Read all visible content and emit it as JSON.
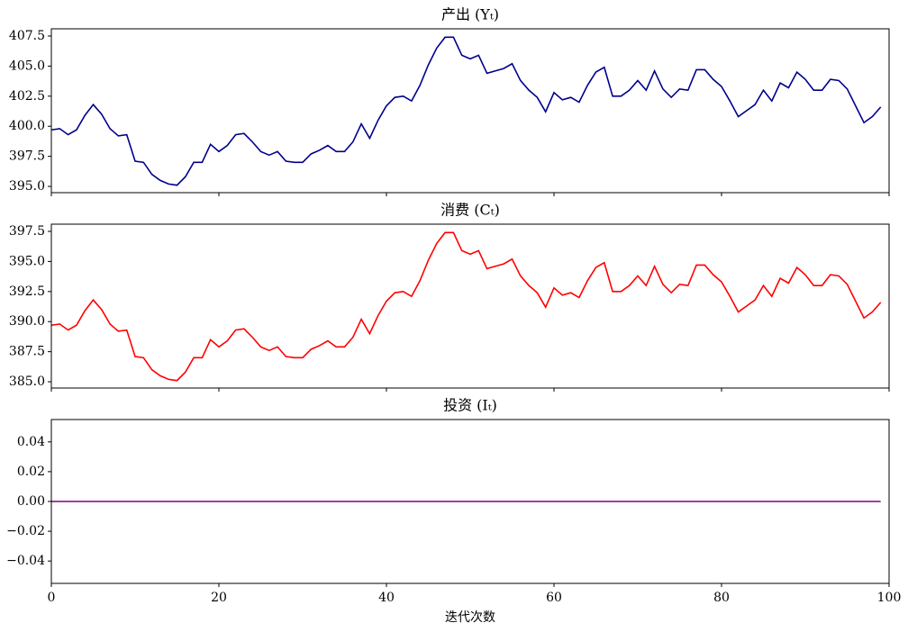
{
  "chart_data": [
    {
      "type": "line",
      "title": "产出 (Yₜ)",
      "color": "#00008b",
      "show_xticklabels": false,
      "x": [
        0,
        1,
        2,
        3,
        4,
        5,
        6,
        7,
        8,
        9,
        10,
        11,
        12,
        13,
        14,
        15,
        16,
        17,
        18,
        19,
        20,
        21,
        22,
        23,
        24,
        25,
        26,
        27,
        28,
        29,
        30,
        31,
        32,
        33,
        34,
        35,
        36,
        37,
        38,
        39,
        40,
        41,
        42,
        43,
        44,
        45,
        46,
        47,
        48,
        49,
        50,
        51,
        52,
        53,
        54,
        55,
        56,
        57,
        58,
        59,
        60,
        61,
        62,
        63,
        64,
        65,
        66,
        67,
        68,
        69,
        70,
        71,
        72,
        73,
        74,
        75,
        76,
        77,
        78,
        79,
        80,
        81,
        82,
        83,
        84,
        85,
        86,
        87,
        88,
        89,
        90,
        91,
        92,
        93,
        94,
        95,
        96,
        97,
        98,
        99
      ],
      "values": [
        399.7,
        399.8,
        399.3,
        399.7,
        400.9,
        401.8,
        401.0,
        399.8,
        399.2,
        399.3,
        397.1,
        397.0,
        396.0,
        395.5,
        395.2,
        395.1,
        395.8,
        397.0,
        397.0,
        398.5,
        397.9,
        398.4,
        399.3,
        399.4,
        398.7,
        397.9,
        397.6,
        397.9,
        397.1,
        397.0,
        397.0,
        397.7,
        398.0,
        398.4,
        397.9,
        397.9,
        398.7,
        400.2,
        399.0,
        400.5,
        401.7,
        402.4,
        402.5,
        402.1,
        403.4,
        405.1,
        406.5,
        407.4,
        407.4,
        405.9,
        405.6,
        405.9,
        404.4,
        404.6,
        404.8,
        405.2,
        403.8,
        403.0,
        402.4,
        401.2,
        402.8,
        402.2,
        402.4,
        402.0,
        403.4,
        404.5,
        404.9,
        402.5,
        402.5,
        403.0,
        403.8,
        403.0,
        404.6,
        403.1,
        402.4,
        403.1,
        403.0,
        404.7,
        404.7,
        403.9,
        403.3,
        402.1,
        400.8,
        401.3,
        401.8,
        403.0,
        402.1,
        403.6,
        403.2,
        404.5,
        403.9,
        403.0,
        403.0,
        403.9,
        403.8,
        403.1,
        401.7,
        400.3,
        400.8,
        401.6
      ],
      "xlim": [
        0,
        100
      ],
      "xticks": [
        0,
        20,
        40,
        60,
        80,
        100
      ],
      "ylim": [
        394.48,
        408.1
      ],
      "yticks": [
        {
          "value": 395,
          "label": "395.0"
        },
        397.5,
        {
          "value": 400,
          "label": "400.0"
        },
        402.5,
        {
          "value": 405,
          "label": "405.0"
        },
        407.5
      ]
    },
    {
      "type": "line",
      "title": "消费 (Cₜ)",
      "color": "#ff0000",
      "show_xticklabels": false,
      "x": [
        0,
        1,
        2,
        3,
        4,
        5,
        6,
        7,
        8,
        9,
        10,
        11,
        12,
        13,
        14,
        15,
        16,
        17,
        18,
        19,
        20,
        21,
        22,
        23,
        24,
        25,
        26,
        27,
        28,
        29,
        30,
        31,
        32,
        33,
        34,
        35,
        36,
        37,
        38,
        39,
        40,
        41,
        42,
        43,
        44,
        45,
        46,
        47,
        48,
        49,
        50,
        51,
        52,
        53,
        54,
        55,
        56,
        57,
        58,
        59,
        60,
        61,
        62,
        63,
        64,
        65,
        66,
        67,
        68,
        69,
        70,
        71,
        72,
        73,
        74,
        75,
        76,
        77,
        78,
        79,
        80,
        81,
        82,
        83,
        84,
        85,
        86,
        87,
        88,
        89,
        90,
        91,
        92,
        93,
        94,
        95,
        96,
        97,
        98,
        99
      ],
      "values": [
        389.7,
        389.8,
        389.3,
        389.7,
        390.9,
        391.8,
        391.0,
        389.8,
        389.2,
        389.3,
        387.1,
        387.0,
        386.0,
        385.5,
        385.2,
        385.1,
        385.8,
        387.0,
        387.0,
        388.5,
        387.9,
        388.4,
        389.3,
        389.4,
        388.7,
        387.9,
        387.6,
        387.9,
        387.1,
        387.0,
        387.0,
        387.7,
        388.0,
        388.4,
        387.9,
        387.9,
        388.7,
        390.2,
        389.0,
        390.5,
        391.7,
        392.4,
        392.5,
        392.1,
        393.4,
        395.1,
        396.5,
        397.4,
        397.4,
        395.9,
        395.6,
        395.9,
        394.4,
        394.6,
        394.8,
        395.2,
        393.8,
        393.0,
        392.4,
        391.2,
        392.8,
        392.2,
        392.4,
        392.0,
        393.4,
        394.5,
        394.9,
        392.5,
        392.5,
        393.0,
        393.8,
        393.0,
        394.6,
        393.1,
        392.4,
        393.1,
        393.0,
        394.7,
        394.7,
        393.9,
        393.3,
        392.1,
        390.8,
        391.3,
        391.8,
        393.0,
        392.1,
        393.6,
        393.2,
        394.5,
        393.9,
        393.0,
        393.0,
        393.9,
        393.8,
        393.1,
        391.7,
        390.3,
        390.8,
        391.6
      ],
      "xlim": [
        0,
        100
      ],
      "xticks": [
        0,
        20,
        40,
        60,
        80,
        100
      ],
      "ylim": [
        384.48,
        398.1
      ],
      "yticks": [
        {
          "value": 385,
          "label": "385.0"
        },
        387.5,
        {
          "value": 390,
          "label": "390.0"
        },
        392.5,
        {
          "value": 395,
          "label": "395.0"
        },
        397.5
      ]
    },
    {
      "type": "line",
      "title": "投资 (Iₜ)",
      "color": "#800080",
      "show_xticklabels": true,
      "xlabel": "迭代次数",
      "x": [
        0,
        1,
        2,
        3,
        4,
        5,
        6,
        7,
        8,
        9,
        10,
        11,
        12,
        13,
        14,
        15,
        16,
        17,
        18,
        19,
        20,
        21,
        22,
        23,
        24,
        25,
        26,
        27,
        28,
        29,
        30,
        31,
        32,
        33,
        34,
        35,
        36,
        37,
        38,
        39,
        40,
        41,
        42,
        43,
        44,
        45,
        46,
        47,
        48,
        49,
        50,
        51,
        52,
        53,
        54,
        55,
        56,
        57,
        58,
        59,
        60,
        61,
        62,
        63,
        64,
        65,
        66,
        67,
        68,
        69,
        70,
        71,
        72,
        73,
        74,
        75,
        76,
        77,
        78,
        79,
        80,
        81,
        82,
        83,
        84,
        85,
        86,
        87,
        88,
        89,
        90,
        91,
        92,
        93,
        94,
        95,
        96,
        97,
        98,
        99
      ],
      "values": [
        0,
        0,
        0,
        0,
        0,
        0,
        0,
        0,
        0,
        0,
        0,
        0,
        0,
        0,
        0,
        0,
        0,
        0,
        0,
        0,
        0,
        0,
        0,
        0,
        0,
        0,
        0,
        0,
        0,
        0,
        0,
        0,
        0,
        0,
        0,
        0,
        0,
        0,
        0,
        0,
        0,
        0,
        0,
        0,
        0,
        0,
        0,
        0,
        0,
        0,
        0,
        0,
        0,
        0,
        0,
        0,
        0,
        0,
        0,
        0,
        0,
        0,
        0,
        0,
        0,
        0,
        0,
        0,
        0,
        0,
        0,
        0,
        0,
        0,
        0,
        0,
        0,
        0,
        0,
        0,
        0,
        0,
        0,
        0,
        0,
        0,
        0,
        0,
        0,
        0,
        0,
        0,
        0,
        0,
        0,
        0,
        0,
        0,
        0,
        0
      ],
      "xlim": [
        0,
        100
      ],
      "xticks": [
        0,
        20,
        40,
        60,
        80,
        100
      ],
      "ylim": [
        -0.055,
        0.055
      ],
      "yticks": [
        {
          "value": -0.04,
          "label": "−0.04"
        },
        {
          "value": -0.02,
          "label": "−0.02"
        },
        {
          "value": 0,
          "label": "0.00"
        },
        0.02,
        0.04
      ]
    }
  ]
}
